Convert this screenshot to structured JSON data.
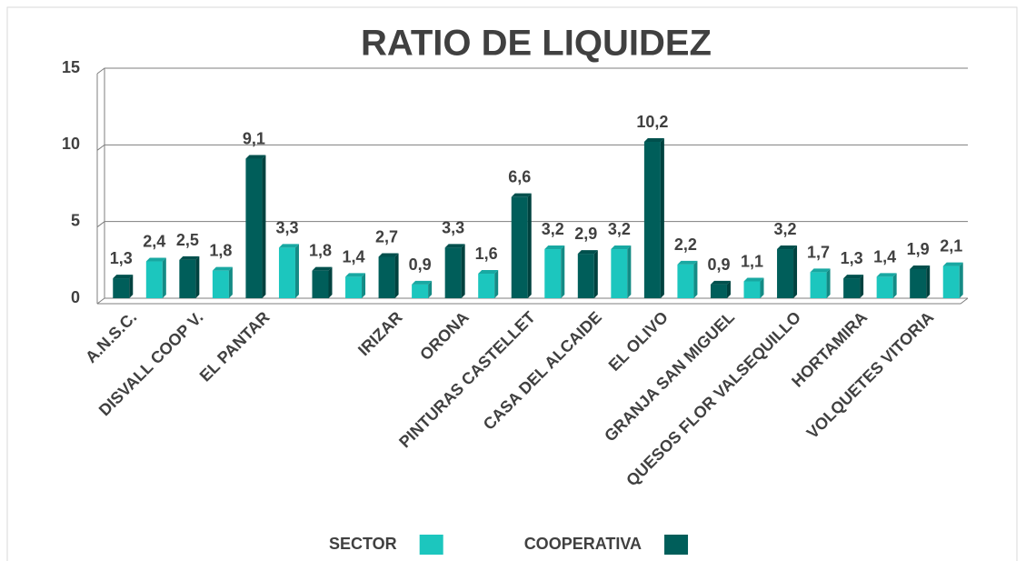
{
  "chart_data": {
    "type": "bar",
    "title": "RATIO DE LIQUIDEZ",
    "categories": [
      "A.N.S.C.",
      "DISVALL COOP V.",
      "EL PANTAR",
      null,
      "IRIZAR",
      "ORONA",
      "PINTURAS CASTELLET",
      "CASA DEL ALCAIDE",
      "EL OLIVO",
      "GRANJA SAN MIGUEL",
      "QUESOS FLOR VALSEQUILLO",
      "HORTAMIRA",
      "VOLQUETES VITORIA"
    ],
    "series": [
      {
        "name": "SECTOR",
        "color": "#1cc6be",
        "values": [
          2.4,
          1.8,
          3.3,
          1.4,
          0.9,
          1.6,
          3.2,
          3.2,
          2.2,
          1.1,
          1.7,
          1.4,
          2.1
        ],
        "value_labels": [
          "2,4",
          "1,8",
          "3,3",
          "1,4",
          "0,9",
          "1,6",
          "3,2",
          "3,2",
          "2,2",
          "1,1",
          "1,7",
          "1,4",
          "2,1"
        ]
      },
      {
        "name": "COOPERATIVA",
        "color": "#005e5a",
        "values": [
          1.3,
          2.5,
          9.1,
          1.8,
          2.7,
          3.3,
          6.6,
          2.9,
          10.2,
          0.9,
          3.2,
          1.3,
          1.9
        ],
        "value_labels": [
          "1,3",
          "2,5",
          "9,1",
          "1,8",
          "2,7",
          "3,3",
          "6,6",
          "2,9",
          "10,2",
          "0,9",
          "3,2",
          "1,3",
          "1,9"
        ]
      }
    ],
    "ylim": [
      0,
      15
    ],
    "yticks": [
      0,
      5,
      10,
      15
    ],
    "grid": true
  }
}
